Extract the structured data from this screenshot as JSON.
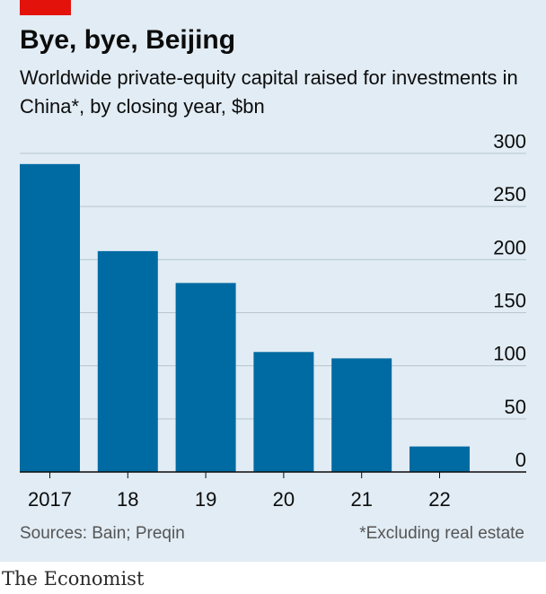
{
  "header": {
    "title": "Bye, bye, Beijing",
    "subtitle": "Worldwide private-equity capital raised for investments in China*, by closing year, $bn"
  },
  "footer": {
    "source": "Sources: Bain; Preqin",
    "note": "*Excluding real estate",
    "brand": "The Economist"
  },
  "colors": {
    "bar": "#006ba2",
    "panel": "#e1ecf4",
    "grid": "#b7c6cf",
    "axis": "#0c0c0c",
    "brand_red": "#e3120b"
  },
  "chart_data": {
    "type": "bar",
    "categories": [
      "2017",
      "18",
      "19",
      "20",
      "21",
      "22"
    ],
    "values": [
      290,
      208,
      178,
      113,
      107,
      24
    ],
    "title": "Bye, bye, Beijing",
    "subtitle": "Worldwide private-equity capital raised for investments in China*, by closing year, $bn",
    "xlabel": "",
    "ylabel": "",
    "ylim": [
      0,
      300
    ],
    "yticks": [
      0,
      50,
      100,
      150,
      200,
      250,
      300
    ],
    "ytick_labels": [
      "0",
      "50",
      "100",
      "150",
      "200",
      "250",
      "300"
    ],
    "grid": true,
    "y_axis_side": "right",
    "legend": "none"
  }
}
